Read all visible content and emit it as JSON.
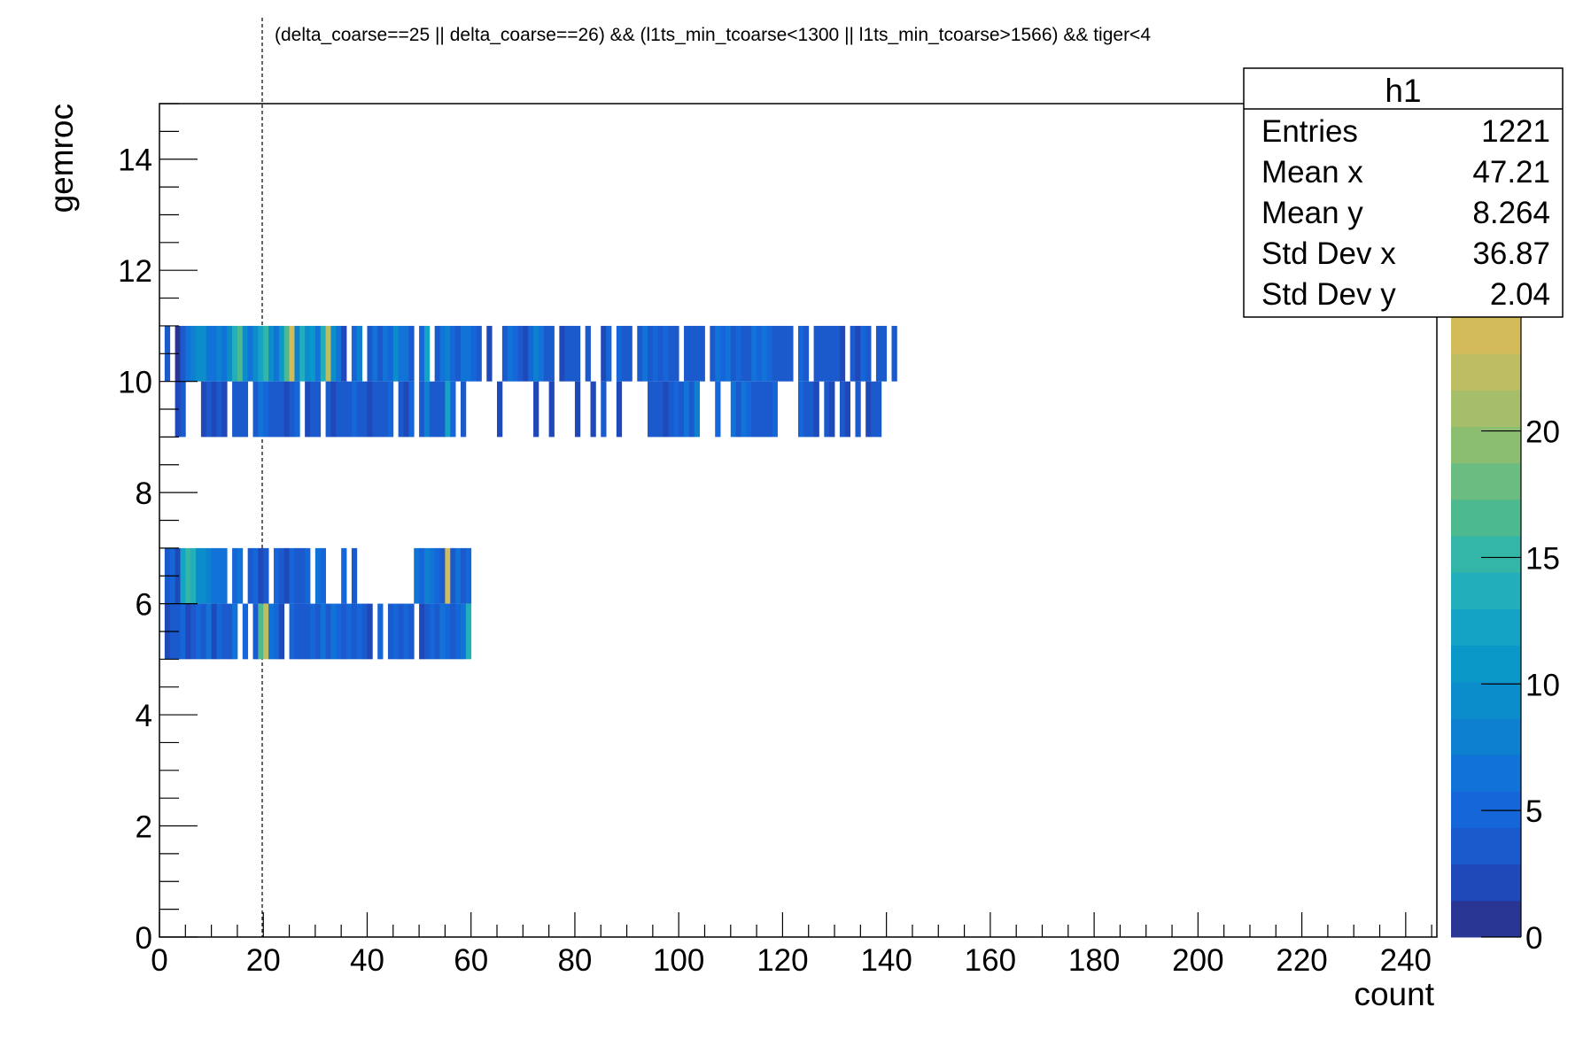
{
  "chart_data": {
    "type": "heatmap",
    "title": "(delta_coarse==25 || delta_coarse==26) && (l1ts_min_tcoarse<1300 || l1ts_min_tcoarse>1566) && tiger<4",
    "xlabel": "count",
    "ylabel": "gemroc",
    "xlim": [
      0,
      246
    ],
    "ylim": [
      0,
      15
    ],
    "x_ticks": [
      "0",
      "20",
      "40",
      "60",
      "80",
      "100",
      "120",
      "140",
      "160",
      "180",
      "200",
      "220",
      "240"
    ],
    "y_ticks": [
      "0",
      "2",
      "4",
      "6",
      "8",
      "10",
      "12",
      "14"
    ],
    "z_ticks": [
      "0",
      "5",
      "10",
      "15",
      "20"
    ],
    "zlim": [
      0,
      24.5
    ],
    "palette": [
      "#283593",
      "#1f48b8",
      "#1a5acd",
      "#1566d8",
      "#1172d7",
      "#0e80d0",
      "#0c8dcb",
      "#0a98c9",
      "#14a3c4",
      "#22aebb",
      "#33b5a7",
      "#4db98e",
      "#6bbc80",
      "#8cbe72",
      "#a6be6a",
      "#bdbd63",
      "#d4bb5a"
    ],
    "rows": [
      {
        "y0": 10,
        "y1": 11,
        "cells": [
          [
            1,
            3
          ],
          [
            3,
            1
          ],
          [
            4,
            4
          ],
          [
            5,
            6
          ],
          [
            6,
            8
          ],
          [
            7,
            10
          ],
          [
            8,
            9
          ],
          [
            9,
            6
          ],
          [
            10,
            7
          ],
          [
            11,
            8
          ],
          [
            12,
            7
          ],
          [
            13,
            10
          ],
          [
            14,
            13
          ],
          [
            15,
            16
          ],
          [
            16,
            9
          ],
          [
            17,
            6
          ],
          [
            18,
            10
          ],
          [
            19,
            12
          ],
          [
            20,
            15
          ],
          [
            21,
            9
          ],
          [
            22,
            7
          ],
          [
            23,
            11
          ],
          [
            24,
            17
          ],
          [
            25,
            24
          ],
          [
            26,
            8
          ],
          [
            27,
            13
          ],
          [
            28,
            9
          ],
          [
            29,
            11
          ],
          [
            30,
            7
          ],
          [
            31,
            14
          ],
          [
            32,
            22
          ],
          [
            33,
            9
          ],
          [
            34,
            6
          ],
          [
            35,
            2
          ],
          [
            37,
            5
          ],
          [
            38,
            8
          ],
          [
            40,
            3
          ],
          [
            41,
            6
          ],
          [
            42,
            4
          ],
          [
            43,
            7
          ],
          [
            44,
            5
          ],
          [
            45,
            9
          ],
          [
            46,
            7
          ],
          [
            47,
            6
          ],
          [
            48,
            4
          ],
          [
            50,
            5
          ],
          [
            51,
            12
          ],
          [
            53,
            3
          ],
          [
            54,
            6
          ],
          [
            55,
            8
          ],
          [
            56,
            5
          ],
          [
            57,
            4
          ],
          [
            58,
            6
          ],
          [
            59,
            7
          ],
          [
            60,
            5
          ],
          [
            61,
            3
          ],
          [
            63,
            2
          ],
          [
            66,
            4
          ],
          [
            67,
            6
          ],
          [
            68,
            5
          ],
          [
            69,
            3
          ],
          [
            70,
            2
          ],
          [
            71,
            5
          ],
          [
            72,
            8
          ],
          [
            73,
            6
          ],
          [
            74,
            4
          ],
          [
            75,
            3
          ],
          [
            77,
            2
          ],
          [
            78,
            3
          ],
          [
            79,
            4
          ],
          [
            80,
            4
          ],
          [
            82,
            3
          ],
          [
            85,
            2
          ],
          [
            86,
            5
          ],
          [
            88,
            5
          ],
          [
            89,
            4
          ],
          [
            90,
            3
          ],
          [
            92,
            4
          ],
          [
            93,
            6
          ],
          [
            94,
            3
          ],
          [
            95,
            5
          ],
          [
            96,
            4
          ],
          [
            97,
            5
          ],
          [
            98,
            3
          ],
          [
            99,
            4
          ],
          [
            101,
            3
          ],
          [
            102,
            4
          ],
          [
            103,
            3
          ],
          [
            104,
            4
          ],
          [
            106,
            3
          ],
          [
            107,
            7
          ],
          [
            108,
            5
          ],
          [
            109,
            6
          ],
          [
            110,
            4
          ],
          [
            111,
            5
          ],
          [
            112,
            3
          ],
          [
            113,
            4
          ],
          [
            114,
            7
          ],
          [
            115,
            5
          ],
          [
            116,
            6
          ],
          [
            117,
            5
          ],
          [
            118,
            4
          ],
          [
            119,
            3
          ],
          [
            120,
            4
          ],
          [
            121,
            3
          ],
          [
            123,
            5
          ],
          [
            124,
            3
          ],
          [
            126,
            4
          ],
          [
            127,
            3
          ],
          [
            128,
            3
          ],
          [
            129,
            4
          ],
          [
            130,
            3
          ],
          [
            131,
            2
          ],
          [
            133,
            3
          ],
          [
            134,
            2
          ],
          [
            135,
            5
          ],
          [
            136,
            3
          ],
          [
            138,
            3
          ],
          [
            139,
            4
          ],
          [
            141,
            3
          ]
        ]
      },
      {
        "y0": 9,
        "y1": 10,
        "cells": [
          [
            3,
            2
          ],
          [
            4,
            3
          ],
          [
            8,
            2
          ],
          [
            9,
            3
          ],
          [
            10,
            2
          ],
          [
            11,
            3
          ],
          [
            12,
            2
          ],
          [
            14,
            3
          ],
          [
            15,
            3
          ],
          [
            16,
            4
          ],
          [
            18,
            4
          ],
          [
            19,
            6
          ],
          [
            20,
            5
          ],
          [
            21,
            3
          ],
          [
            22,
            3
          ],
          [
            23,
            4
          ],
          [
            24,
            2
          ],
          [
            25,
            3
          ],
          [
            26,
            5
          ],
          [
            28,
            2
          ],
          [
            29,
            3
          ],
          [
            30,
            4
          ],
          [
            32,
            3
          ],
          [
            33,
            2
          ],
          [
            34,
            3
          ],
          [
            35,
            4
          ],
          [
            36,
            3
          ],
          [
            37,
            5
          ],
          [
            38,
            4
          ],
          [
            39,
            3
          ],
          [
            40,
            2
          ],
          [
            41,
            3
          ],
          [
            42,
            4
          ],
          [
            43,
            3
          ],
          [
            44,
            5
          ],
          [
            46,
            3
          ],
          [
            47,
            2
          ],
          [
            48,
            5
          ],
          [
            50,
            4
          ],
          [
            51,
            8
          ],
          [
            52,
            3
          ],
          [
            53,
            3
          ],
          [
            54,
            4
          ],
          [
            55,
            12
          ],
          [
            56,
            5
          ],
          [
            58,
            3
          ],
          [
            65,
            2
          ],
          [
            72,
            2
          ],
          [
            75,
            2
          ],
          [
            80,
            2
          ],
          [
            83,
            2
          ],
          [
            85,
            3
          ],
          [
            88,
            2
          ],
          [
            94,
            3
          ],
          [
            95,
            4
          ],
          [
            96,
            3
          ],
          [
            97,
            2
          ],
          [
            98,
            3
          ],
          [
            99,
            5
          ],
          [
            100,
            4
          ],
          [
            101,
            6
          ],
          [
            102,
            4
          ],
          [
            103,
            8
          ],
          [
            107,
            5
          ],
          [
            110,
            6
          ],
          [
            111,
            4
          ],
          [
            112,
            6
          ],
          [
            113,
            5
          ],
          [
            114,
            4
          ],
          [
            115,
            3
          ],
          [
            116,
            4
          ],
          [
            117,
            3
          ],
          [
            118,
            5
          ],
          [
            123,
            5
          ],
          [
            124,
            3
          ],
          [
            125,
            4
          ],
          [
            126,
            2
          ],
          [
            128,
            3
          ],
          [
            129,
            2
          ],
          [
            131,
            3
          ],
          [
            132,
            2
          ],
          [
            134,
            3
          ],
          [
            136,
            2
          ],
          [
            137,
            4
          ],
          [
            138,
            3
          ]
        ]
      },
      {
        "y0": 6,
        "y1": 7,
        "cells": [
          [
            1,
            3
          ],
          [
            2,
            5
          ],
          [
            3,
            2
          ],
          [
            4,
            12
          ],
          [
            5,
            15
          ],
          [
            6,
            13
          ],
          [
            7,
            10
          ],
          [
            8,
            9
          ],
          [
            9,
            8
          ],
          [
            10,
            7
          ],
          [
            11,
            6
          ],
          [
            12,
            7
          ],
          [
            14,
            5
          ],
          [
            15,
            6
          ],
          [
            17,
            4
          ],
          [
            18,
            5
          ],
          [
            19,
            2
          ],
          [
            20,
            3
          ],
          [
            22,
            5
          ],
          [
            23,
            4
          ],
          [
            24,
            2
          ],
          [
            25,
            5
          ],
          [
            26,
            3
          ],
          [
            27,
            4
          ],
          [
            28,
            5
          ],
          [
            30,
            6
          ],
          [
            31,
            5
          ],
          [
            35,
            5
          ],
          [
            37,
            3
          ],
          [
            49,
            7
          ],
          [
            50,
            5
          ],
          [
            51,
            8
          ],
          [
            52,
            6
          ],
          [
            53,
            5
          ],
          [
            54,
            4
          ],
          [
            55,
            24
          ],
          [
            56,
            3
          ],
          [
            57,
            6
          ],
          [
            58,
            4
          ],
          [
            59,
            5
          ]
        ]
      },
      {
        "y0": 5,
        "y1": 6,
        "cells": [
          [
            1,
            2
          ],
          [
            2,
            3
          ],
          [
            3,
            3
          ],
          [
            4,
            5
          ],
          [
            5,
            2
          ],
          [
            6,
            4
          ],
          [
            7,
            5
          ],
          [
            8,
            3
          ],
          [
            9,
            6
          ],
          [
            10,
            2
          ],
          [
            11,
            5
          ],
          [
            12,
            3
          ],
          [
            13,
            4
          ],
          [
            14,
            6
          ],
          [
            16,
            5
          ],
          [
            18,
            3
          ],
          [
            19,
            16
          ],
          [
            20,
            22
          ],
          [
            21,
            7
          ],
          [
            22,
            5
          ],
          [
            23,
            2
          ],
          [
            25,
            5
          ],
          [
            26,
            3
          ],
          [
            27,
            4
          ],
          [
            28,
            3
          ],
          [
            29,
            5
          ],
          [
            30,
            4
          ],
          [
            31,
            6
          ],
          [
            32,
            3
          ],
          [
            33,
            7
          ],
          [
            34,
            5
          ],
          [
            35,
            4
          ],
          [
            36,
            5
          ],
          [
            37,
            3
          ],
          [
            38,
            5
          ],
          [
            39,
            4
          ],
          [
            40,
            2
          ],
          [
            42,
            5
          ],
          [
            44,
            4
          ],
          [
            45,
            5
          ],
          [
            46,
            4
          ],
          [
            47,
            5
          ],
          [
            48,
            4
          ],
          [
            50,
            2
          ],
          [
            51,
            3
          ],
          [
            52,
            5
          ],
          [
            53,
            4
          ],
          [
            54,
            7
          ],
          [
            55,
            5
          ],
          [
            56,
            4
          ],
          [
            57,
            5
          ],
          [
            58,
            7
          ],
          [
            59,
            14
          ]
        ]
      }
    ]
  },
  "stats": {
    "name": "h1",
    "rows": [
      {
        "label": "Entries",
        "value": "1221"
      },
      {
        "label": "Mean x",
        "value": "47.21"
      },
      {
        "label": "Mean y",
        "value": "8.264"
      },
      {
        "label": "Std Dev x",
        "value": "36.87"
      },
      {
        "label": "Std Dev y",
        "value": "2.04"
      }
    ]
  }
}
